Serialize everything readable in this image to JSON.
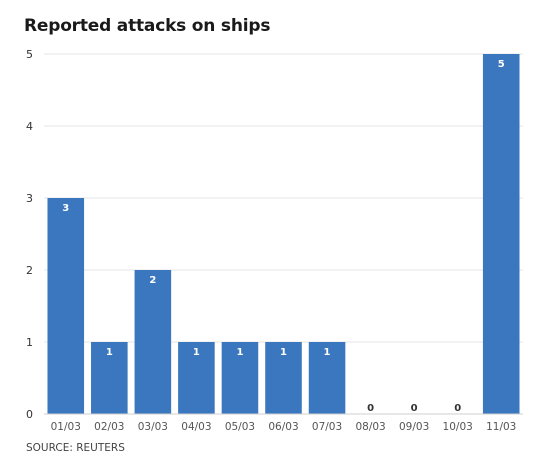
{
  "title": "Reported attacks on ships",
  "source": "SOURCE: REUTERS",
  "colors": {
    "bar": "#3b77bf",
    "grid": "#e4e4e4",
    "baseline": "#cfcfcf",
    "label_inside": "#ffffff",
    "label_zero": "#333333"
  },
  "chart_data": {
    "type": "bar",
    "categories": [
      "01/03",
      "02/03",
      "03/03",
      "04/03",
      "05/03",
      "06/03",
      "07/03",
      "08/03",
      "09/03",
      "10/03",
      "11/03"
    ],
    "values": [
      3,
      1,
      2,
      1,
      1,
      1,
      1,
      0,
      0,
      0,
      5
    ],
    "yticks": [
      0,
      1,
      2,
      3,
      4,
      5
    ],
    "ylim": [
      0,
      5
    ],
    "grid": true,
    "data_labels": true
  }
}
